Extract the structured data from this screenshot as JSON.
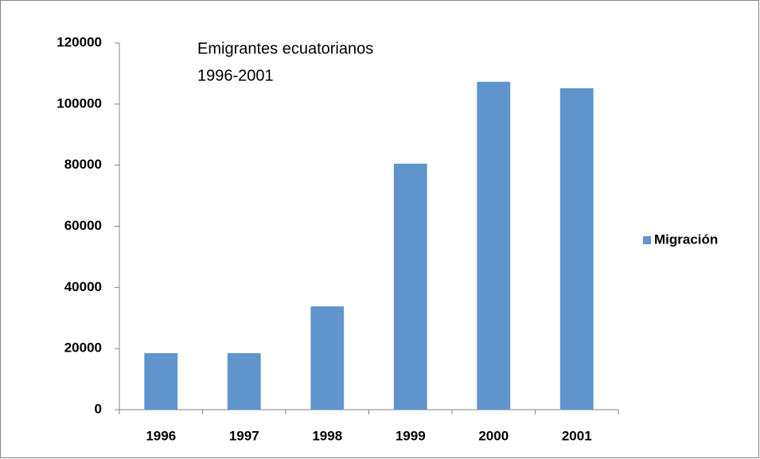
{
  "chart_data": {
    "type": "bar",
    "title": [
      "Emigrantes ecuatorianos",
      "1996-2001"
    ],
    "categories": [
      "1996",
      "1997",
      "1998",
      "1999",
      "2000",
      "2001"
    ],
    "series": [
      {
        "name": "Migración",
        "color": "#5f94cc",
        "values": [
          18500,
          18500,
          33800,
          80500,
          107300,
          105200
        ]
      }
    ],
    "ylim": [
      0,
      120000
    ],
    "yticks": [
      0,
      20000,
      40000,
      60000,
      80000,
      100000,
      120000
    ],
    "grid": false,
    "legend": "right"
  }
}
